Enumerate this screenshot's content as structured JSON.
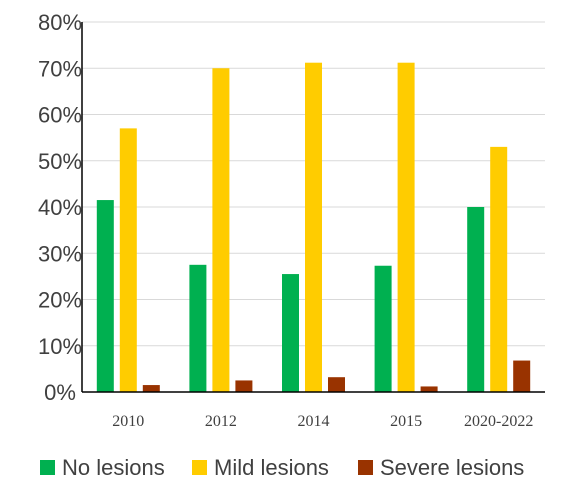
{
  "chart_data": {
    "type": "bar",
    "categories": [
      "2010",
      "2012",
      "2014",
      "2015",
      "2020-2022"
    ],
    "series": [
      {
        "name": "No lesions",
        "color": "#00B050",
        "values": [
          41.5,
          27.5,
          25.5,
          27.3,
          40.0
        ]
      },
      {
        "name": "Mild lesions",
        "color": "#FFCC00",
        "values": [
          57.0,
          70.0,
          71.2,
          71.2,
          53.0
        ]
      },
      {
        "name": "Severe lesions",
        "color": "#993300",
        "values": [
          1.5,
          2.5,
          3.2,
          1.2,
          6.8
        ]
      }
    ],
    "ylim": [
      0,
      80
    ],
    "yticks": [
      0,
      10,
      20,
      30,
      40,
      50,
      60,
      70,
      80
    ],
    "ytick_labels": [
      "0%",
      "10%",
      "20%",
      "30%",
      "40%",
      "50%",
      "60%",
      "70%",
      "80%"
    ],
    "grid": true,
    "legend_position": "bottom",
    "title": "",
    "xlabel": "",
    "ylabel": ""
  }
}
